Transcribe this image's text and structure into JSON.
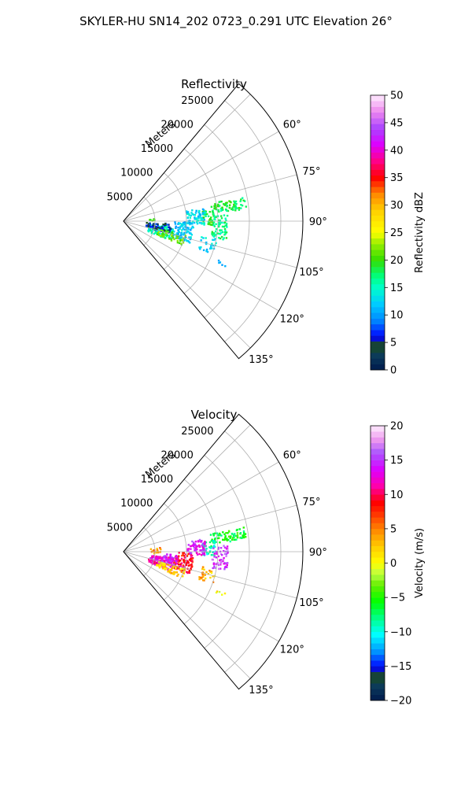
{
  "suptitle": "SKYLER-HU  SN14_202  0723_0.291 UTC Elevation 26°",
  "chart_data": [
    {
      "type": "heatmap",
      "projection": "polar-sector",
      "title": "Reflectivity",
      "range_label": "Meters",
      "r_ticks": [
        5000,
        10000,
        15000,
        20000,
        25000
      ],
      "r_tick_labels": [
        "5000",
        "10000",
        "15000",
        "20000",
        "25000"
      ],
      "r_max": 28500,
      "theta_range_deg": [
        40,
        140
      ],
      "theta_ticks_deg": [
        60,
        75,
        90,
        105,
        120,
        135
      ],
      "theta_tick_labels": [
        "60°",
        "75°",
        "90°",
        "105°",
        "120°",
        "135°"
      ],
      "grid": true,
      "colorbar": {
        "label": "Reflectivity dBZ",
        "min": 0,
        "max": 50,
        "ticks": [
          0,
          5,
          10,
          15,
          20,
          25,
          30,
          35,
          40,
          45,
          50
        ],
        "tick_labels": [
          "0",
          "5",
          "10",
          "15",
          "20",
          "25",
          "30",
          "35",
          "40",
          "45",
          "50"
        ]
      },
      "echoes": [
        {
          "az": [
            78,
            84
          ],
          "r": [
            14000,
            19500
          ],
          "value": 18,
          "density": 0.75
        },
        {
          "az": [
            82,
            92
          ],
          "r": [
            12500,
            14500
          ],
          "value": 19,
          "density": 0.7
        },
        {
          "az": [
            86,
            100
          ],
          "r": [
            14000,
            16500
          ],
          "value": 17,
          "density": 0.6
        },
        {
          "az": [
            80,
            92
          ],
          "r": [
            10000,
            13000
          ],
          "value": 13,
          "density": 0.6
        },
        {
          "az": [
            90,
            108
          ],
          "r": [
            8000,
            11000
          ],
          "value": 12,
          "density": 0.6
        },
        {
          "az": [
            96,
            112
          ],
          "r": [
            4000,
            8000
          ],
          "value": 15,
          "density": 0.55
        },
        {
          "az": [
            92,
            104
          ],
          "r": [
            3500,
            7500
          ],
          "value": 6,
          "density": 0.45
        },
        {
          "az": [
            100,
            110
          ],
          "r": [
            12500,
            15000
          ],
          "value": 13,
          "density": 0.35
        },
        {
          "az": [
            102,
            112
          ],
          "r": [
            5500,
            10000
          ],
          "value": 21,
          "density": 0.35
        },
        {
          "az": [
            82,
            88
          ],
          "r": [
            4000,
            5500
          ],
          "value": 21,
          "density": 0.25
        },
        {
          "az": [
            112,
            114
          ],
          "r": [
            15500,
            17500
          ],
          "value": 12,
          "density": 0.4
        }
      ]
    },
    {
      "type": "heatmap",
      "projection": "polar-sector",
      "title": "Velocity",
      "range_label": "Meters",
      "r_ticks": [
        5000,
        10000,
        15000,
        20000,
        25000
      ],
      "r_tick_labels": [
        "5000",
        "10000",
        "15000",
        "20000",
        "25000"
      ],
      "r_max": 28500,
      "theta_range_deg": [
        40,
        140
      ],
      "theta_ticks_deg": [
        60,
        75,
        90,
        105,
        120,
        135
      ],
      "theta_tick_labels": [
        "60°",
        "75°",
        "90°",
        "105°",
        "120°",
        "135°"
      ],
      "grid": true,
      "colorbar": {
        "label": "Velocity (m/s)",
        "min": -20,
        "max": 20,
        "ticks": [
          -20,
          -15,
          -10,
          -5,
          0,
          5,
          10,
          15,
          20
        ],
        "tick_labels": [
          "−20",
          "−15",
          "−10",
          "−5",
          "0",
          "5",
          "10",
          "15",
          "20"
        ]
      },
      "echoes": [
        {
          "az": [
            78,
            84
          ],
          "r": [
            14000,
            19500
          ],
          "value": -6,
          "density": 0.75
        },
        {
          "az": [
            82,
            92
          ],
          "r": [
            12500,
            14500
          ],
          "value": -9,
          "density": 0.7
        },
        {
          "az": [
            86,
            100
          ],
          "r": [
            14000,
            16500
          ],
          "value": 15,
          "density": 0.6
        },
        {
          "az": [
            80,
            92
          ],
          "r": [
            10000,
            13000
          ],
          "value": 14,
          "density": 0.6
        },
        {
          "az": [
            90,
            108
          ],
          "r": [
            8000,
            11000
          ],
          "value": 9,
          "density": 0.6
        },
        {
          "az": [
            96,
            112
          ],
          "r": [
            4000,
            8000
          ],
          "value": 12,
          "density": 0.55
        },
        {
          "az": [
            104,
            114
          ],
          "r": [
            5500,
            10000
          ],
          "value": 2,
          "density": 0.45
        },
        {
          "az": [
            92,
            104
          ],
          "r": [
            6000,
            8500
          ],
          "value": 14,
          "density": 0.45
        },
        {
          "az": [
            100,
            110
          ],
          "r": [
            12500,
            15000
          ],
          "value": 3,
          "density": 0.35
        },
        {
          "az": [
            82,
            92
          ],
          "r": [
            4000,
            6000
          ],
          "value": 5,
          "density": 0.3
        },
        {
          "az": [
            112,
            114
          ],
          "r": [
            15500,
            17500
          ],
          "value": 1,
          "density": 0.4
        }
      ]
    }
  ]
}
